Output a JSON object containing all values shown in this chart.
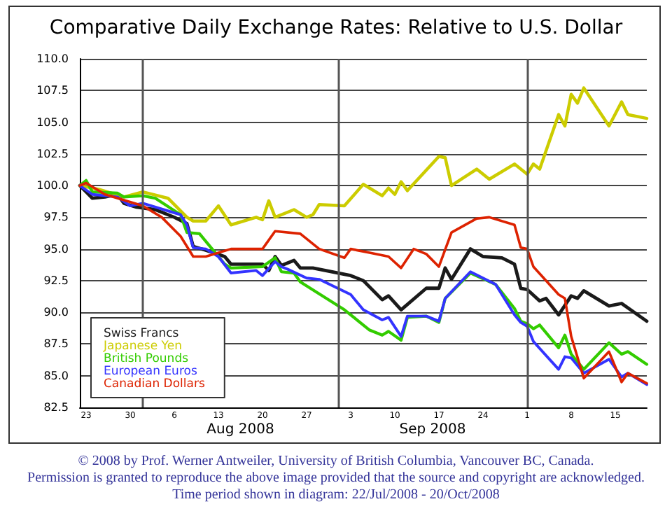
{
  "chart_data": {
    "type": "line",
    "title": "Comparative Daily Exchange Rates: Relative to U.S. Dollar",
    "xlim": [
      "2008-07-22",
      "2008-10-20"
    ],
    "xticks": [
      {
        "value": "2008-07-23",
        "label": "23"
      },
      {
        "value": "2008-07-30",
        "label": "30"
      },
      {
        "value": "2008-08-06",
        "label": "6"
      },
      {
        "value": "2008-08-13",
        "label": "13"
      },
      {
        "value": "2008-08-20",
        "label": "20"
      },
      {
        "value": "2008-08-27",
        "label": "27"
      },
      {
        "value": "2008-09-03",
        "label": "3"
      },
      {
        "value": "2008-09-10",
        "label": "10"
      },
      {
        "value": "2008-09-17",
        "label": "17"
      },
      {
        "value": "2008-09-24",
        "label": "24"
      },
      {
        "value": "2008-10-01",
        "label": "1"
      },
      {
        "value": "2008-10-08",
        "label": "8"
      },
      {
        "value": "2008-10-15",
        "label": "15"
      }
    ],
    "ylim": [
      82.5,
      110
    ],
    "yticks": [
      {
        "value": 82.5,
        "label": "82.5"
      },
      {
        "value": 85,
        "label": "85.0"
      },
      {
        "value": 87.5,
        "label": "87.5"
      },
      {
        "value": 90,
        "label": "90.0"
      },
      {
        "value": 92.5,
        "label": "92.5"
      },
      {
        "value": 95,
        "label": "95.0"
      },
      {
        "value": 97.5,
        "label": "97.5"
      },
      {
        "value": 100,
        "label": "100.0"
      },
      {
        "value": 102.5,
        "label": "102.5"
      },
      {
        "value": 105,
        "label": "105.0"
      },
      {
        "value": 107.5,
        "label": "107.5"
      },
      {
        "value": 110,
        "label": "110.0"
      }
    ],
    "grid": "y",
    "legend": "bottom left",
    "marker": "none",
    "line_style": "solid",
    "ref_lines": [
      {
        "axis": "x",
        "value": "2008-08-01",
        "label": null,
        "color": "#555555"
      },
      {
        "axis": "x",
        "value": "2008-09-01",
        "label": null,
        "color": "#555555"
      },
      {
        "axis": "x",
        "value": "2008-10-01",
        "label": null,
        "color": "#555555"
      }
    ],
    "annotations": [
      "Aug 2008",
      "Sep 2008",
      "© 2008 by Prof. Werner Antweiler, University of British Columbia, Vancouver BC, Canada.",
      "Permission is granted to reproduce the above image provided that the source and copyright are acknowledged.",
      "Time period shown in diagram: 22/Jul/2008 - 20/Oct/2008"
    ],
    "series": [
      {
        "name": "Swiss Francs",
        "color": "#1a1a1a",
        "x": [
          "2008-07-22",
          "2008-07-23",
          "2008-07-24",
          "2008-07-26",
          "2008-07-28",
          "2008-07-29",
          "2008-07-31",
          "2008-08-03",
          "2008-08-06",
          "2008-08-08",
          "2008-08-09",
          "2008-08-11",
          "2008-08-14",
          "2008-08-15",
          "2008-08-20",
          "2008-08-21",
          "2008-08-22",
          "2008-08-23",
          "2008-08-25",
          "2008-08-26",
          "2008-08-28",
          "2008-09-03",
          "2008-09-05",
          "2008-09-08",
          "2008-09-09",
          "2008-09-11",
          "2008-09-15",
          "2008-09-17",
          "2008-09-18",
          "2008-09-19",
          "2008-09-22",
          "2008-09-24",
          "2008-09-27",
          "2008-09-29",
          "2008-09-30",
          "2008-10-01",
          "2008-10-03",
          "2008-10-04",
          "2008-10-06",
          "2008-10-08",
          "2008-10-09",
          "2008-10-10",
          "2008-10-14",
          "2008-10-16",
          "2008-10-20"
        ],
        "values": [
          100,
          99.5,
          99.0,
          99.1,
          99.3,
          98.6,
          98.3,
          98.1,
          97.5,
          97.0,
          95.2,
          94.9,
          94.4,
          93.8,
          93.8,
          93.3,
          94.4,
          93.7,
          94.1,
          93.5,
          93.5,
          92.9,
          92.5,
          91.0,
          91.3,
          90.2,
          91.9,
          91.9,
          93.5,
          92.6,
          95.0,
          94.4,
          94.3,
          93.8,
          91.9,
          91.8,
          90.9,
          91.1,
          89.8,
          91.3,
          91.1,
          91.7,
          90.5,
          90.7,
          89.3
        ]
      },
      {
        "name": "Japanese Yen",
        "color": "#cccc00",
        "x": [
          "2008-07-22",
          "2008-07-25",
          "2008-07-29",
          "2008-08-01",
          "2008-08-05",
          "2008-08-08",
          "2008-08-09",
          "2008-08-11",
          "2008-08-13",
          "2008-08-15",
          "2008-08-19",
          "2008-08-20",
          "2008-08-21",
          "2008-08-22",
          "2008-08-25",
          "2008-08-27",
          "2008-08-28",
          "2008-08-29",
          "2008-09-02",
          "2008-09-05",
          "2008-09-08",
          "2008-09-09",
          "2008-09-10",
          "2008-09-11",
          "2008-09-12",
          "2008-09-17",
          "2008-09-18",
          "2008-09-19",
          "2008-09-23",
          "2008-09-25",
          "2008-09-29",
          "2008-10-01",
          "2008-10-02",
          "2008-10-03",
          "2008-10-06",
          "2008-10-07",
          "2008-10-08",
          "2008-10-09",
          "2008-10-10",
          "2008-10-14",
          "2008-10-16",
          "2008-10-17",
          "2008-10-20"
        ],
        "values": [
          100,
          99.7,
          99.1,
          99.5,
          99.0,
          97.5,
          97.2,
          97.2,
          98.4,
          96.9,
          97.5,
          97.3,
          98.8,
          97.5,
          98.1,
          97.5,
          97.7,
          98.5,
          98.4,
          100.1,
          99.2,
          99.8,
          99.3,
          100.3,
          99.6,
          102.3,
          102.2,
          100.0,
          101.3,
          100.5,
          101.7,
          100.9,
          101.7,
          101.3,
          105.6,
          104.7,
          107.2,
          106.5,
          107.7,
          104.7,
          106.6,
          105.6,
          105.3
        ]
      },
      {
        "name": "British Pounds",
        "color": "#33cc00",
        "x": [
          "2008-07-22",
          "2008-07-23",
          "2008-07-24",
          "2008-07-28",
          "2008-07-29",
          "2008-08-01",
          "2008-08-03",
          "2008-08-07",
          "2008-08-08",
          "2008-08-10",
          "2008-08-14",
          "2008-08-15",
          "2008-08-20",
          "2008-08-22",
          "2008-08-23",
          "2008-08-25",
          "2008-08-26",
          "2008-09-02",
          "2008-09-06",
          "2008-09-08",
          "2008-09-09",
          "2008-09-11",
          "2008-09-12",
          "2008-09-15",
          "2008-09-17",
          "2008-09-18",
          "2008-09-22",
          "2008-09-26",
          "2008-09-29",
          "2008-09-30",
          "2008-10-01",
          "2008-10-02",
          "2008-10-03",
          "2008-10-06",
          "2008-10-07",
          "2008-10-08",
          "2008-10-10",
          "2008-10-14",
          "2008-10-16",
          "2008-10-17",
          "2008-10-20"
        ],
        "values": [
          100,
          100.4,
          99.5,
          99.4,
          99.1,
          99.2,
          99.0,
          97.7,
          96.3,
          96.2,
          93.8,
          93.5,
          93.6,
          94.3,
          93.2,
          93.1,
          92.4,
          90.2,
          88.6,
          88.2,
          88.5,
          87.8,
          89.6,
          89.7,
          89.2,
          91.1,
          93.1,
          92.2,
          90.3,
          89.3,
          89.1,
          88.7,
          89.0,
          87.2,
          88.2,
          86.7,
          85.5,
          87.6,
          86.7,
          86.9,
          85.9
        ]
      },
      {
        "name": "European Euros",
        "color": "#3333ff",
        "x": [
          "2008-07-22",
          "2008-07-24",
          "2008-07-28",
          "2008-07-30",
          "2008-08-01",
          "2008-08-07",
          "2008-08-08",
          "2008-08-09",
          "2008-08-11",
          "2008-08-13",
          "2008-08-15",
          "2008-08-19",
          "2008-08-20",
          "2008-08-22",
          "2008-08-23",
          "2008-08-24",
          "2008-08-27",
          "2008-08-29",
          "2008-09-03",
          "2008-09-05",
          "2008-09-08",
          "2008-09-09",
          "2008-09-11",
          "2008-09-12",
          "2008-09-15",
          "2008-09-17",
          "2008-09-18",
          "2008-09-22",
          "2008-09-26",
          "2008-09-29",
          "2008-09-30",
          "2008-10-01",
          "2008-10-02",
          "2008-10-06",
          "2008-10-07",
          "2008-10-08",
          "2008-10-10",
          "2008-10-14",
          "2008-10-16",
          "2008-10-17",
          "2008-10-20"
        ],
        "values": [
          100,
          99.3,
          99.1,
          98.4,
          98.6,
          97.7,
          96.9,
          95.1,
          95.0,
          94.4,
          93.1,
          93.3,
          92.9,
          94.0,
          93.6,
          93.4,
          92.7,
          92.6,
          91.4,
          90.2,
          89.4,
          89.6,
          88.1,
          89.7,
          89.7,
          89.3,
          91.1,
          93.2,
          92.2,
          89.8,
          89.2,
          88.9,
          87.7,
          85.5,
          86.5,
          86.4,
          85.2,
          86.3,
          84.9,
          85.2,
          84.3
        ]
      },
      {
        "name": "Canadian Dollars",
        "color": "#dd2200",
        "x": [
          "2008-07-22",
          "2008-07-23",
          "2008-07-26",
          "2008-08-01",
          "2008-08-04",
          "2008-08-07",
          "2008-08-09",
          "2008-08-11",
          "2008-08-15",
          "2008-08-20",
          "2008-08-22",
          "2008-08-26",
          "2008-08-29",
          "2008-09-02",
          "2008-09-03",
          "2008-09-06",
          "2008-09-09",
          "2008-09-11",
          "2008-09-13",
          "2008-09-15",
          "2008-09-17",
          "2008-09-19",
          "2008-09-23",
          "2008-09-25",
          "2008-09-29",
          "2008-09-30",
          "2008-10-01",
          "2008-10-02",
          "2008-10-06",
          "2008-10-07",
          "2008-10-08",
          "2008-10-10",
          "2008-10-14",
          "2008-10-16",
          "2008-10-17",
          "2008-10-20"
        ],
        "values": [
          100,
          100.2,
          99.3,
          98.4,
          97.5,
          96.0,
          94.4,
          94.4,
          95.0,
          95.0,
          96.4,
          96.2,
          95.0,
          94.3,
          95.0,
          94.7,
          94.4,
          93.5,
          95.0,
          94.6,
          93.6,
          96.3,
          97.4,
          97.5,
          96.9,
          95.1,
          95.0,
          93.6,
          91.4,
          91.1,
          88.1,
          84.8,
          86.9,
          84.5,
          85.2,
          84.4
        ]
      }
    ]
  }
}
